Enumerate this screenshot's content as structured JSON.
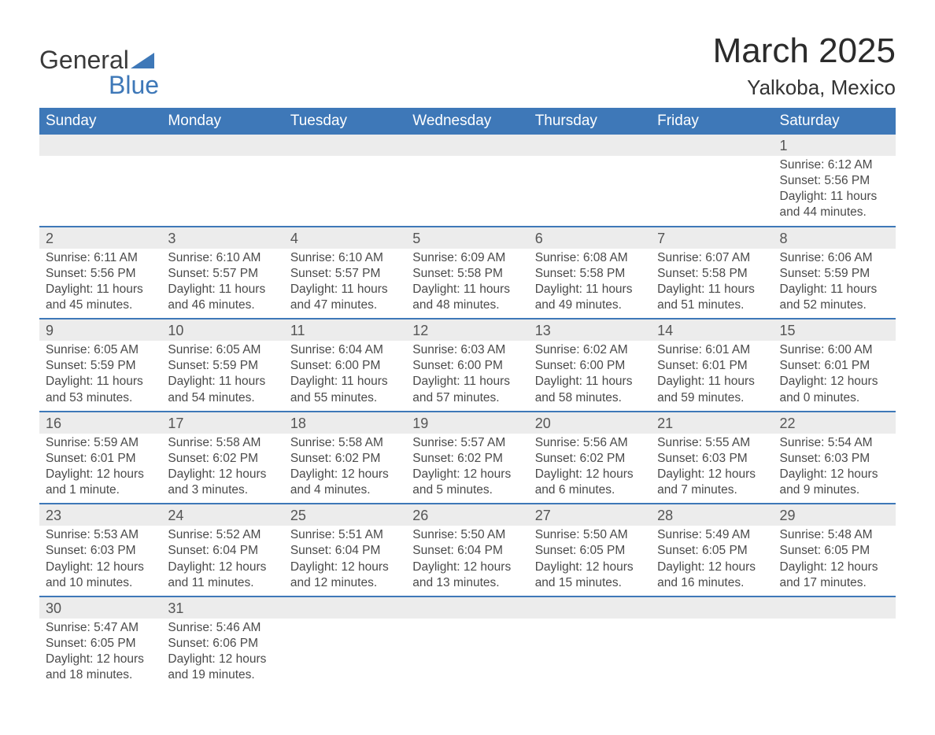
{
  "logo": {
    "text1": "General",
    "text2": "Blue",
    "tri_color": "#3e78b8"
  },
  "title": "March 2025",
  "location": "Yalkoba, Mexico",
  "header_bg": "#3e78b8",
  "daynum_bg": "#ececec",
  "divider_color": "#3e78b8",
  "day_headers": [
    "Sunday",
    "Monday",
    "Tuesday",
    "Wednesday",
    "Thursday",
    "Friday",
    "Saturday"
  ],
  "labels": {
    "sunrise": "Sunrise: ",
    "sunset": "Sunset: ",
    "daylight": "Daylight: "
  },
  "weeks": [
    [
      null,
      null,
      null,
      null,
      null,
      null,
      {
        "n": "1",
        "sr": "6:12 AM",
        "ss": "5:56 PM",
        "dl": "11 hours and 44 minutes."
      }
    ],
    [
      {
        "n": "2",
        "sr": "6:11 AM",
        "ss": "5:56 PM",
        "dl": "11 hours and 45 minutes."
      },
      {
        "n": "3",
        "sr": "6:10 AM",
        "ss": "5:57 PM",
        "dl": "11 hours and 46 minutes."
      },
      {
        "n": "4",
        "sr": "6:10 AM",
        "ss": "5:57 PM",
        "dl": "11 hours and 47 minutes."
      },
      {
        "n": "5",
        "sr": "6:09 AM",
        "ss": "5:58 PM",
        "dl": "11 hours and 48 minutes."
      },
      {
        "n": "6",
        "sr": "6:08 AM",
        "ss": "5:58 PM",
        "dl": "11 hours and 49 minutes."
      },
      {
        "n": "7",
        "sr": "6:07 AM",
        "ss": "5:58 PM",
        "dl": "11 hours and 51 minutes."
      },
      {
        "n": "8",
        "sr": "6:06 AM",
        "ss": "5:59 PM",
        "dl": "11 hours and 52 minutes."
      }
    ],
    [
      {
        "n": "9",
        "sr": "6:05 AM",
        "ss": "5:59 PM",
        "dl": "11 hours and 53 minutes."
      },
      {
        "n": "10",
        "sr": "6:05 AM",
        "ss": "5:59 PM",
        "dl": "11 hours and 54 minutes."
      },
      {
        "n": "11",
        "sr": "6:04 AM",
        "ss": "6:00 PM",
        "dl": "11 hours and 55 minutes."
      },
      {
        "n": "12",
        "sr": "6:03 AM",
        "ss": "6:00 PM",
        "dl": "11 hours and 57 minutes."
      },
      {
        "n": "13",
        "sr": "6:02 AM",
        "ss": "6:00 PM",
        "dl": "11 hours and 58 minutes."
      },
      {
        "n": "14",
        "sr": "6:01 AM",
        "ss": "6:01 PM",
        "dl": "11 hours and 59 minutes."
      },
      {
        "n": "15",
        "sr": "6:00 AM",
        "ss": "6:01 PM",
        "dl": "12 hours and 0 minutes."
      }
    ],
    [
      {
        "n": "16",
        "sr": "5:59 AM",
        "ss": "6:01 PM",
        "dl": "12 hours and 1 minute."
      },
      {
        "n": "17",
        "sr": "5:58 AM",
        "ss": "6:02 PM",
        "dl": "12 hours and 3 minutes."
      },
      {
        "n": "18",
        "sr": "5:58 AM",
        "ss": "6:02 PM",
        "dl": "12 hours and 4 minutes."
      },
      {
        "n": "19",
        "sr": "5:57 AM",
        "ss": "6:02 PM",
        "dl": "12 hours and 5 minutes."
      },
      {
        "n": "20",
        "sr": "5:56 AM",
        "ss": "6:02 PM",
        "dl": "12 hours and 6 minutes."
      },
      {
        "n": "21",
        "sr": "5:55 AM",
        "ss": "6:03 PM",
        "dl": "12 hours and 7 minutes."
      },
      {
        "n": "22",
        "sr": "5:54 AM",
        "ss": "6:03 PM",
        "dl": "12 hours and 9 minutes."
      }
    ],
    [
      {
        "n": "23",
        "sr": "5:53 AM",
        "ss": "6:03 PM",
        "dl": "12 hours and 10 minutes."
      },
      {
        "n": "24",
        "sr": "5:52 AM",
        "ss": "6:04 PM",
        "dl": "12 hours and 11 minutes."
      },
      {
        "n": "25",
        "sr": "5:51 AM",
        "ss": "6:04 PM",
        "dl": "12 hours and 12 minutes."
      },
      {
        "n": "26",
        "sr": "5:50 AM",
        "ss": "6:04 PM",
        "dl": "12 hours and 13 minutes."
      },
      {
        "n": "27",
        "sr": "5:50 AM",
        "ss": "6:05 PM",
        "dl": "12 hours and 15 minutes."
      },
      {
        "n": "28",
        "sr": "5:49 AM",
        "ss": "6:05 PM",
        "dl": "12 hours and 16 minutes."
      },
      {
        "n": "29",
        "sr": "5:48 AM",
        "ss": "6:05 PM",
        "dl": "12 hours and 17 minutes."
      }
    ],
    [
      {
        "n": "30",
        "sr": "5:47 AM",
        "ss": "6:05 PM",
        "dl": "12 hours and 18 minutes."
      },
      {
        "n": "31",
        "sr": "5:46 AM",
        "ss": "6:06 PM",
        "dl": "12 hours and 19 minutes."
      },
      null,
      null,
      null,
      null,
      null
    ]
  ]
}
